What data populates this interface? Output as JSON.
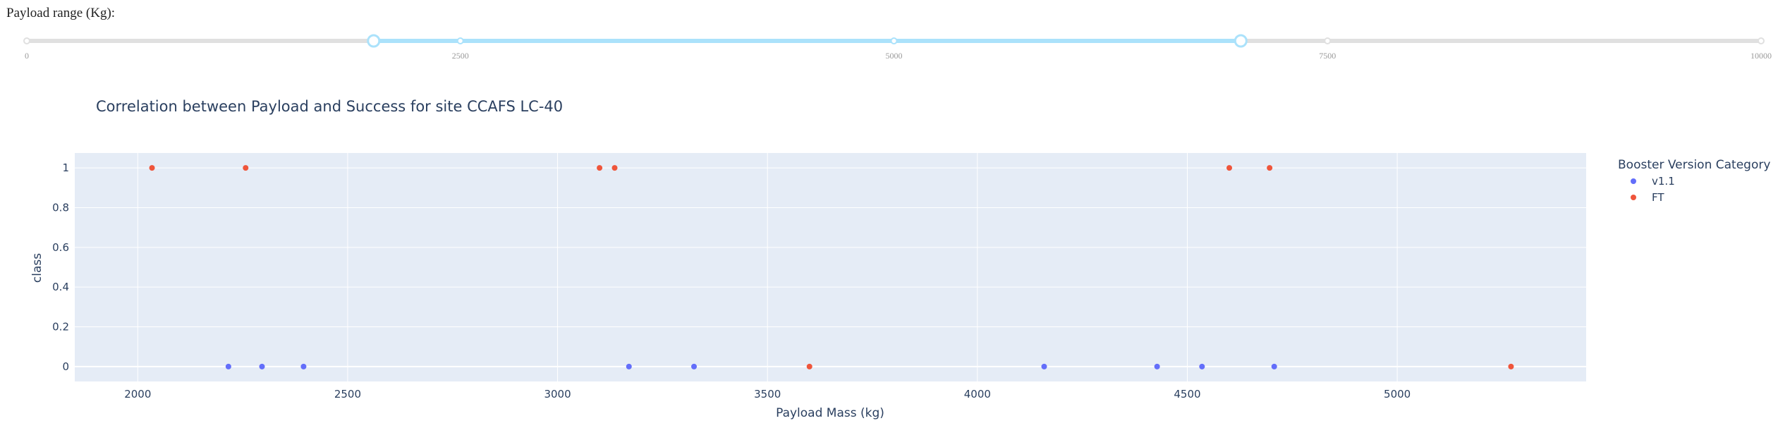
{
  "slider": {
    "label": "Payload range (Kg):",
    "min": 0,
    "max": 10000,
    "marks": [
      {
        "value": 0,
        "label": "0"
      },
      {
        "value": 2500,
        "label": "2500"
      },
      {
        "value": 5000,
        "label": "5000"
      },
      {
        "value": 7500,
        "label": "7500"
      },
      {
        "value": 10000,
        "label": "10000"
      }
    ],
    "selected_range": [
      2000,
      7000
    ],
    "colors": {
      "track": "#e0e0e0",
      "active": "#abe2fb",
      "handle": "#abe2fb"
    }
  },
  "chart_data": {
    "type": "scatter",
    "title": "Correlation between Payload and Success for site CCAFS LC-40",
    "xlabel": "Payload Mass (kg)",
    "ylabel": "class",
    "xlim": [
      1850,
      5450
    ],
    "ylim": [
      -0.075,
      1.075
    ],
    "xticks": [
      2000,
      2500,
      3000,
      3500,
      4000,
      4500,
      5000
    ],
    "yticks": [
      0,
      0.2,
      0.4,
      0.6,
      0.8,
      1
    ],
    "grid": true,
    "legend": {
      "title": "Booster Version Category",
      "position": "right"
    },
    "series": [
      {
        "name": "v1.1",
        "color": "#636efa",
        "points": [
          [
            2216,
            0
          ],
          [
            2296,
            0
          ],
          [
            2395,
            0
          ],
          [
            3170,
            0
          ],
          [
            3325,
            0
          ],
          [
            4159,
            0
          ],
          [
            4428,
            0
          ],
          [
            4535,
            0
          ],
          [
            4707,
            0
          ]
        ]
      },
      {
        "name": "FT",
        "color": "#ef553b",
        "points": [
          [
            2034,
            1
          ],
          [
            2257,
            1
          ],
          [
            3100,
            1
          ],
          [
            3136,
            1
          ],
          [
            3600,
            0
          ],
          [
            4600,
            1
          ],
          [
            4696,
            1
          ],
          [
            5271,
            0
          ]
        ]
      }
    ],
    "colors": {
      "plot_bg": "#e5ecf6",
      "grid": "#ffffff",
      "text": "#2a3f5f"
    }
  }
}
